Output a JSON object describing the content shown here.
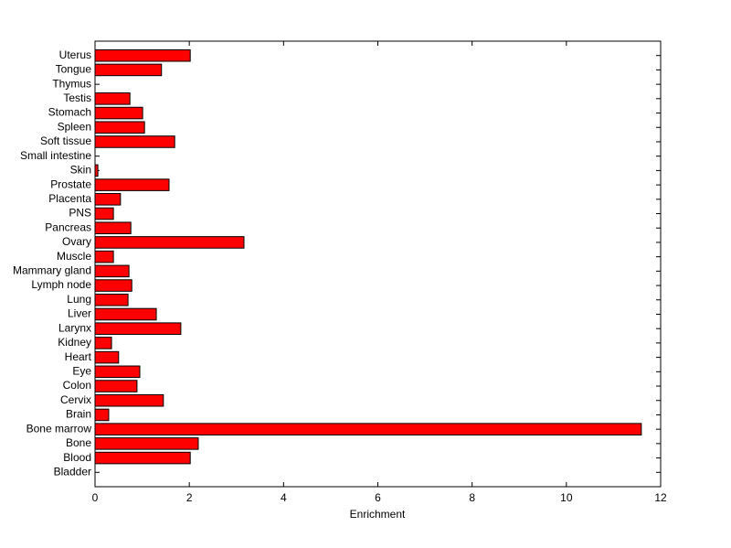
{
  "chart_data": {
    "type": "barh",
    "x_label": "Enrichment",
    "categories": [
      "Bladder",
      "Blood",
      "Bone",
      "Bone marrow",
      "Brain",
      "Cervix",
      "Colon",
      "Eye",
      "Heart",
      "Kidney",
      "Larynx",
      "Liver",
      "Lung",
      "Lymph node",
      "Mammary gland",
      "Muscle",
      "Ovary",
      "Pancreas",
      "PNS",
      "Placenta",
      "Prostate",
      "Skin",
      "Small intestine",
      "Soft tissue",
      "Spleen",
      "Stomach",
      "Testis",
      "Thymus",
      "Tongue",
      "Uterus"
    ],
    "values": [
      0,
      2.02,
      2.19,
      11.59,
      0.29,
      1.45,
      0.89,
      0.95,
      0.5,
      0.35,
      1.82,
      1.3,
      0.7,
      0.78,
      0.72,
      0.39,
      3.16,
      0.76,
      0.39,
      0.54,
      1.57,
      0.06,
      0,
      1.69,
      1.05,
      1.01,
      0.74,
      0,
      1.41,
      2.02
    ],
    "color": "#ff0000",
    "xlim": [
      0,
      12
    ],
    "xticks": [
      0,
      2,
      4,
      6,
      8,
      10,
      12
    ]
  }
}
